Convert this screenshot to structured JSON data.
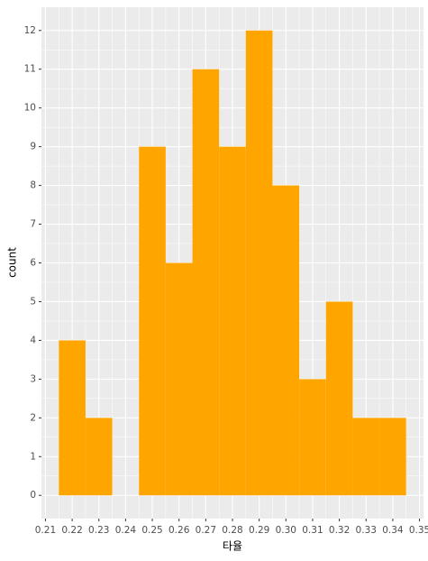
{
  "chart_data": {
    "type": "histogram",
    "x_label": "타율",
    "y_label": "count",
    "bins": [
      0.215,
      0.225,
      0.235,
      0.245,
      0.255,
      0.265,
      0.275,
      0.285,
      0.295,
      0.305,
      0.315,
      0.325,
      0.335,
      0.345
    ],
    "values": [
      4,
      2,
      0,
      9,
      6,
      11,
      9,
      12,
      8,
      3,
      5,
      2,
      2
    ],
    "color": "#FFA500",
    "xlim": [
      0.2085,
      0.3515
    ],
    "xticks": [
      0.21,
      0.22,
      0.23,
      0.24,
      0.25,
      0.26,
      0.27,
      0.28,
      0.29,
      {
        "value": 0.3,
        "label": "0.30"
      },
      0.31,
      0.32,
      0.33,
      0.34,
      0.35
    ],
    "ylim": [
      -0.6,
      12.6
    ],
    "yticks": [
      0,
      1,
      2,
      3,
      4,
      5,
      6,
      7,
      8,
      9,
      10,
      11,
      12
    ],
    "grid": true
  }
}
